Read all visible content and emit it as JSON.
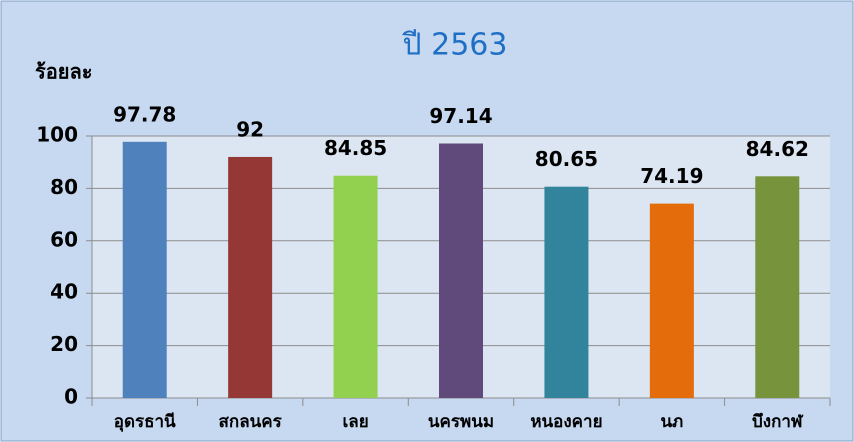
{
  "chart_data": {
    "type": "bar",
    "title": "ปี 2563",
    "y_label": "ร้อยละ",
    "categories": [
      "อุดรธานี",
      "สกลนคร",
      "เลย",
      "นครพนม",
      "หนองคาย",
      "นภ",
      "บึงกาฬ"
    ],
    "values": [
      97.78,
      92,
      84.85,
      97.14,
      80.65,
      74.19,
      84.62
    ],
    "colors": [
      "#4f81bd",
      "#953735",
      "#92d050",
      "#604a7b",
      "#31849b",
      "#e46c0a",
      "#77933c"
    ],
    "ylim": [
      0,
      100
    ],
    "yticks": [
      0,
      20,
      40,
      60,
      80,
      100
    ],
    "grid": true
  }
}
